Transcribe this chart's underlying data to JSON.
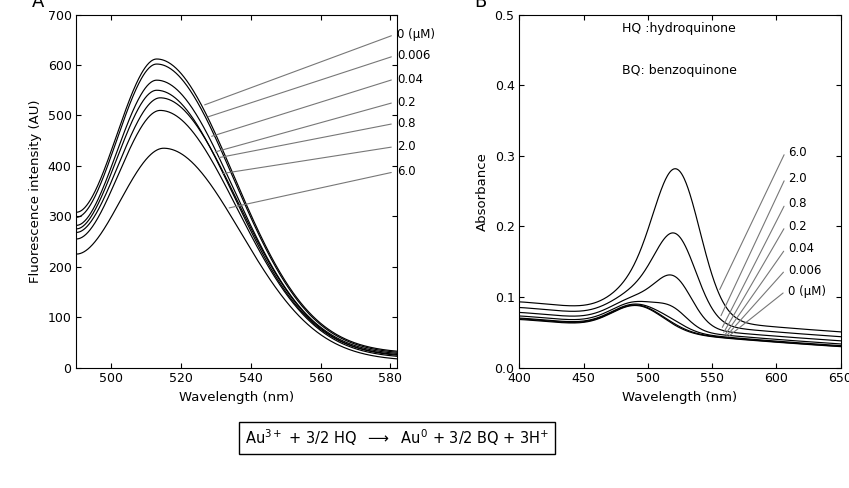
{
  "panel_A": {
    "xlabel": "Wavelength (nm)",
    "ylabel": "Fluorescence intensity (AU)",
    "xlim": [
      490,
      582
    ],
    "ylim": [
      0,
      700
    ],
    "xticks": [
      500,
      520,
      540,
      560,
      580
    ],
    "yticks": [
      0,
      100,
      200,
      300,
      400,
      500,
      600,
      700
    ],
    "labels": [
      "0 (μM)",
      "0.006",
      "0.04",
      "0.2",
      "0.8",
      "2.0",
      "6.0"
    ],
    "peak_values": [
      612,
      602,
      570,
      550,
      535,
      510,
      435
    ],
    "peak_wl": [
      513,
      513,
      513,
      513,
      514,
      514,
      515
    ],
    "start_values": [
      308,
      298,
      282,
      275,
      268,
      255,
      225
    ],
    "end_values": [
      28,
      26,
      24,
      22,
      20,
      18,
      13
    ],
    "sigma_rise": [
      7,
      7,
      7,
      7,
      7,
      7,
      7
    ],
    "sigma_fall": [
      22,
      22,
      22,
      22,
      22,
      22,
      22
    ]
  },
  "panel_B": {
    "xlabel": "Wavelength (nm)",
    "ylabel": "Absorbance",
    "xlim": [
      400,
      650
    ],
    "ylim": [
      0.0,
      0.5
    ],
    "xticks": [
      400,
      450,
      500,
      550,
      600,
      650
    ],
    "yticks": [
      0.0,
      0.1,
      0.2,
      0.3,
      0.4,
      0.5
    ],
    "labels": [
      "6.0",
      "2.0",
      "0.8",
      "0.2",
      "0.04",
      "0.006",
      "0 (μM)"
    ],
    "legend_text": [
      "HQ :hydroquinone",
      "BQ: benzoquinone"
    ],
    "spr_peaks": [
      0.105,
      0.108,
      0.107,
      0.106,
      0.105,
      0.104,
      0.103
    ],
    "spr_wl": [
      520,
      520,
      520,
      520,
      520,
      520,
      520
    ],
    "base_at_400": [
      0.073,
      0.071,
      0.069,
      0.068,
      0.067,
      0.067,
      0.066
    ],
    "end_at_650": [
      0.02,
      0.014,
      0.009,
      0.005,
      0.003,
      0.002,
      0.002
    ],
    "extra_peak_ht": [
      0.2,
      0.115,
      0.06,
      0.02,
      0.005,
      0.001,
      0.0
    ],
    "extra_peak_wl": [
      523,
      522,
      521,
      520,
      520,
      520,
      520
    ],
    "extra_sigma": [
      18,
      16,
      14,
      12,
      12,
      12,
      12
    ]
  }
}
